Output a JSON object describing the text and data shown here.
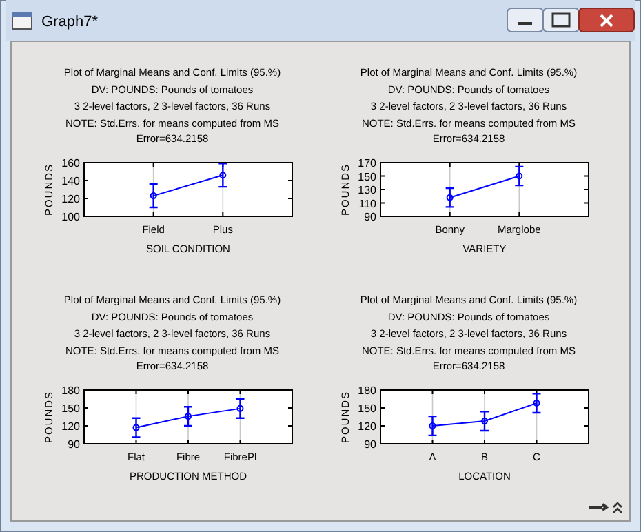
{
  "chart_data": [
    {
      "type": "other",
      "title": "Graph7*"
    },
    {
      "type": "line",
      "title": "Plot of Marginal Means and Conf. Limits (95.%)",
      "subtitle": "DV: POUNDS: Pounds of tomatoes",
      "annotations": [
        "3 2-level factors, 2 3-level factors, 36 Runs",
        "NOTE: Std.Errs. for means computed from MS Error=634.2158"
      ],
      "categories": [
        "Field",
        "Plus"
      ],
      "values": [
        123,
        146
      ],
      "errors": [
        13,
        13
      ],
      "color": "#0000ff",
      "ylim": [
        100,
        160
      ],
      "yticks": [
        100,
        120,
        140,
        160
      ],
      "xlabel": "SOIL CONDITION",
      "ylabel": "POUNDS",
      "grid": "x",
      "marker": "circle",
      "line_style": "solid"
    },
    {
      "type": "line",
      "title": "Plot of Marginal Means and Conf. Limits (95.%)",
      "subtitle": "DV: POUNDS: Pounds of tomatoes",
      "annotations": [
        "3 2-level factors, 2 3-level factors, 36 Runs",
        "NOTE: Std.Errs. for means computed from MS Error=634.2158"
      ],
      "categories": [
        "Bonny",
        "Marglobe"
      ],
      "values": [
        118,
        150
      ],
      "errors": [
        14,
        14
      ],
      "color": "#0000ff",
      "ylim": [
        90,
        170
      ],
      "yticks": [
        90,
        110,
        130,
        150,
        170
      ],
      "xlabel": "VARIETY",
      "ylabel": "POUNDS",
      "grid": "x",
      "marker": "circle",
      "line_style": "solid"
    },
    {
      "type": "line",
      "title": "Plot of Marginal Means and Conf. Limits (95.%)",
      "subtitle": "DV: POUNDS: Pounds of tomatoes",
      "annotations": [
        "3 2-level factors, 2 3-level factors, 36 Runs",
        "NOTE: Std.Errs. for means computed from MS Error=634.2158"
      ],
      "categories": [
        "Flat",
        "Fibre",
        "FibrePl"
      ],
      "values": [
        117,
        136,
        149
      ],
      "errors": [
        16,
        16,
        16
      ],
      "color": "#0000ff",
      "ylim": [
        90,
        180
      ],
      "yticks": [
        90,
        120,
        150,
        180
      ],
      "xlabel": "PRODUCTION METHOD",
      "ylabel": "POUNDS",
      "grid": "x",
      "marker": "circle",
      "line_style": "solid"
    },
    {
      "type": "line",
      "title": "Plot of Marginal Means and Conf. Limits (95.%)",
      "subtitle": "DV: POUNDS: Pounds of tomatoes",
      "annotations": [
        "3 2-level factors, 2 3-level factors, 36 Runs",
        "NOTE: Std.Errs. for means computed from MS Error=634.2158"
      ],
      "categories": [
        "A",
        "B",
        "C"
      ],
      "values": [
        120,
        128,
        158
      ],
      "errors": [
        16,
        16,
        16
      ],
      "color": "#0000ff",
      "ylim": [
        90,
        180
      ],
      "yticks": [
        90,
        120,
        150,
        180
      ],
      "xlabel": "LOCATION",
      "ylabel": "POUNDS",
      "grid": "x",
      "marker": "circle",
      "line_style": "solid"
    }
  ]
}
